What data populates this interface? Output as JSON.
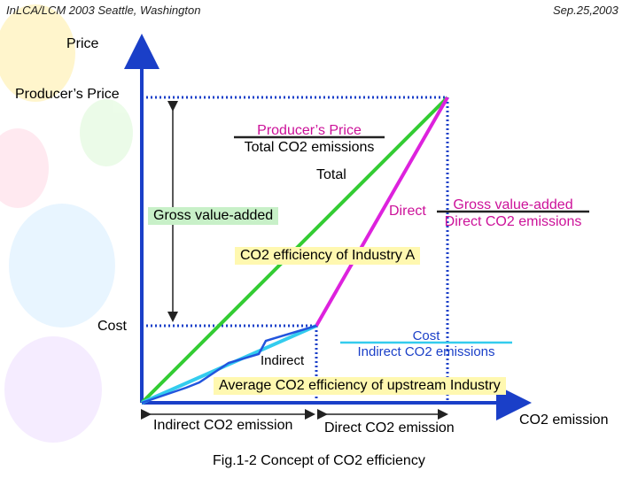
{
  "header": {
    "left": "InLCA/LCM 2003  Seattle, Washington",
    "right": "Sep.25,2003"
  },
  "axes": {
    "y_label": "Price",
    "x_label": "CO2 emission"
  },
  "labels": {
    "producers_price": "Producer’s Price",
    "cost": "Cost",
    "total": "Total",
    "direct": "Direct",
    "indirect": "Indirect",
    "gross_value_added": "Gross value-added",
    "co2_efficiency_industry_a": "CO2 efficiency of Industry A",
    "average_co2_efficiency": "Average CO2 efficiency of upstream Industry",
    "indirect_co2_emission": "Indirect CO2 emission",
    "direct_co2_emission": "Direct CO2 emission"
  },
  "fractions": {
    "total": {
      "numerator": "Producer’s Price",
      "denominator": "Total CO2 emissions"
    },
    "direct": {
      "numerator": "Gross value-added",
      "denominator": "Direct CO2 emissions"
    },
    "indirect": {
      "numerator": "Cost",
      "denominator": "Indirect CO2 emissions"
    }
  },
  "caption": "Fig.1-2 Concept of CO2 efficiency",
  "colors": {
    "axis": "#1a3fc8",
    "total_line": "#33cc33",
    "direct_line": "#dd22dd",
    "indirect_line": "#33ccee",
    "indirect_path": "#2255dd",
    "guide": "#1a3fc8"
  }
}
